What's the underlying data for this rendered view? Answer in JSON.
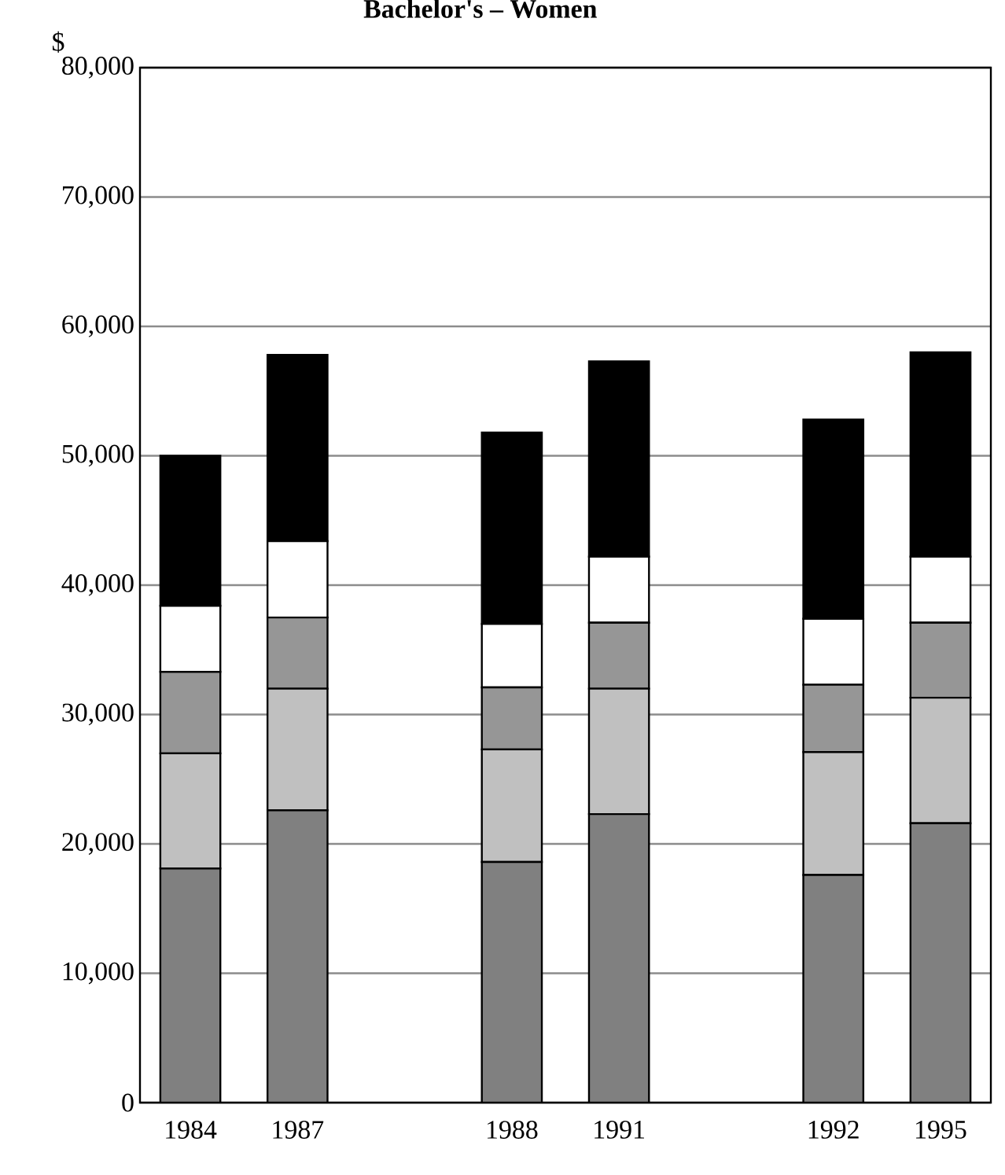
{
  "chart_data": {
    "type": "bar",
    "title": "Bachelor's – Women",
    "ylabel": "$",
    "stacked": true,
    "grid": "y",
    "categories": [
      "1984",
      "1987",
      null,
      "1988",
      "1991",
      null,
      "1992",
      "1995"
    ],
    "series": [
      {
        "color": "#808080",
        "values": [
          18100,
          22600,
          null,
          18600,
          22300,
          null,
          17600,
          21600
        ]
      },
      {
        "color": "#c0c0c0",
        "values": [
          8900,
          9400,
          null,
          8700,
          9700,
          null,
          9500,
          9700
        ]
      },
      {
        "color": "#969696",
        "values": [
          6300,
          5500,
          null,
          4800,
          5100,
          null,
          5200,
          5800
        ]
      },
      {
        "color": "#ffffff",
        "values": [
          5100,
          5900,
          null,
          4900,
          5100,
          null,
          5100,
          5100
        ]
      },
      {
        "color": "#000000",
        "values": [
          11600,
          14400,
          null,
          14800,
          15100,
          null,
          15400,
          15800
        ]
      }
    ],
    "ylim": [
      0,
      80000
    ],
    "yticks": [
      {
        "value": 0,
        "label": "0"
      },
      {
        "value": 10000,
        "label": "10,000"
      },
      {
        "value": 20000,
        "label": "20,000"
      },
      {
        "value": 30000,
        "label": "30,000"
      },
      {
        "value": 40000,
        "label": "40,000"
      },
      {
        "value": 50000,
        "label": "50,000"
      },
      {
        "value": 60000,
        "label": "60,000"
      },
      {
        "value": 70000,
        "label": "70,000"
      },
      {
        "value": 80000,
        "label": "80,000"
      }
    ]
  }
}
